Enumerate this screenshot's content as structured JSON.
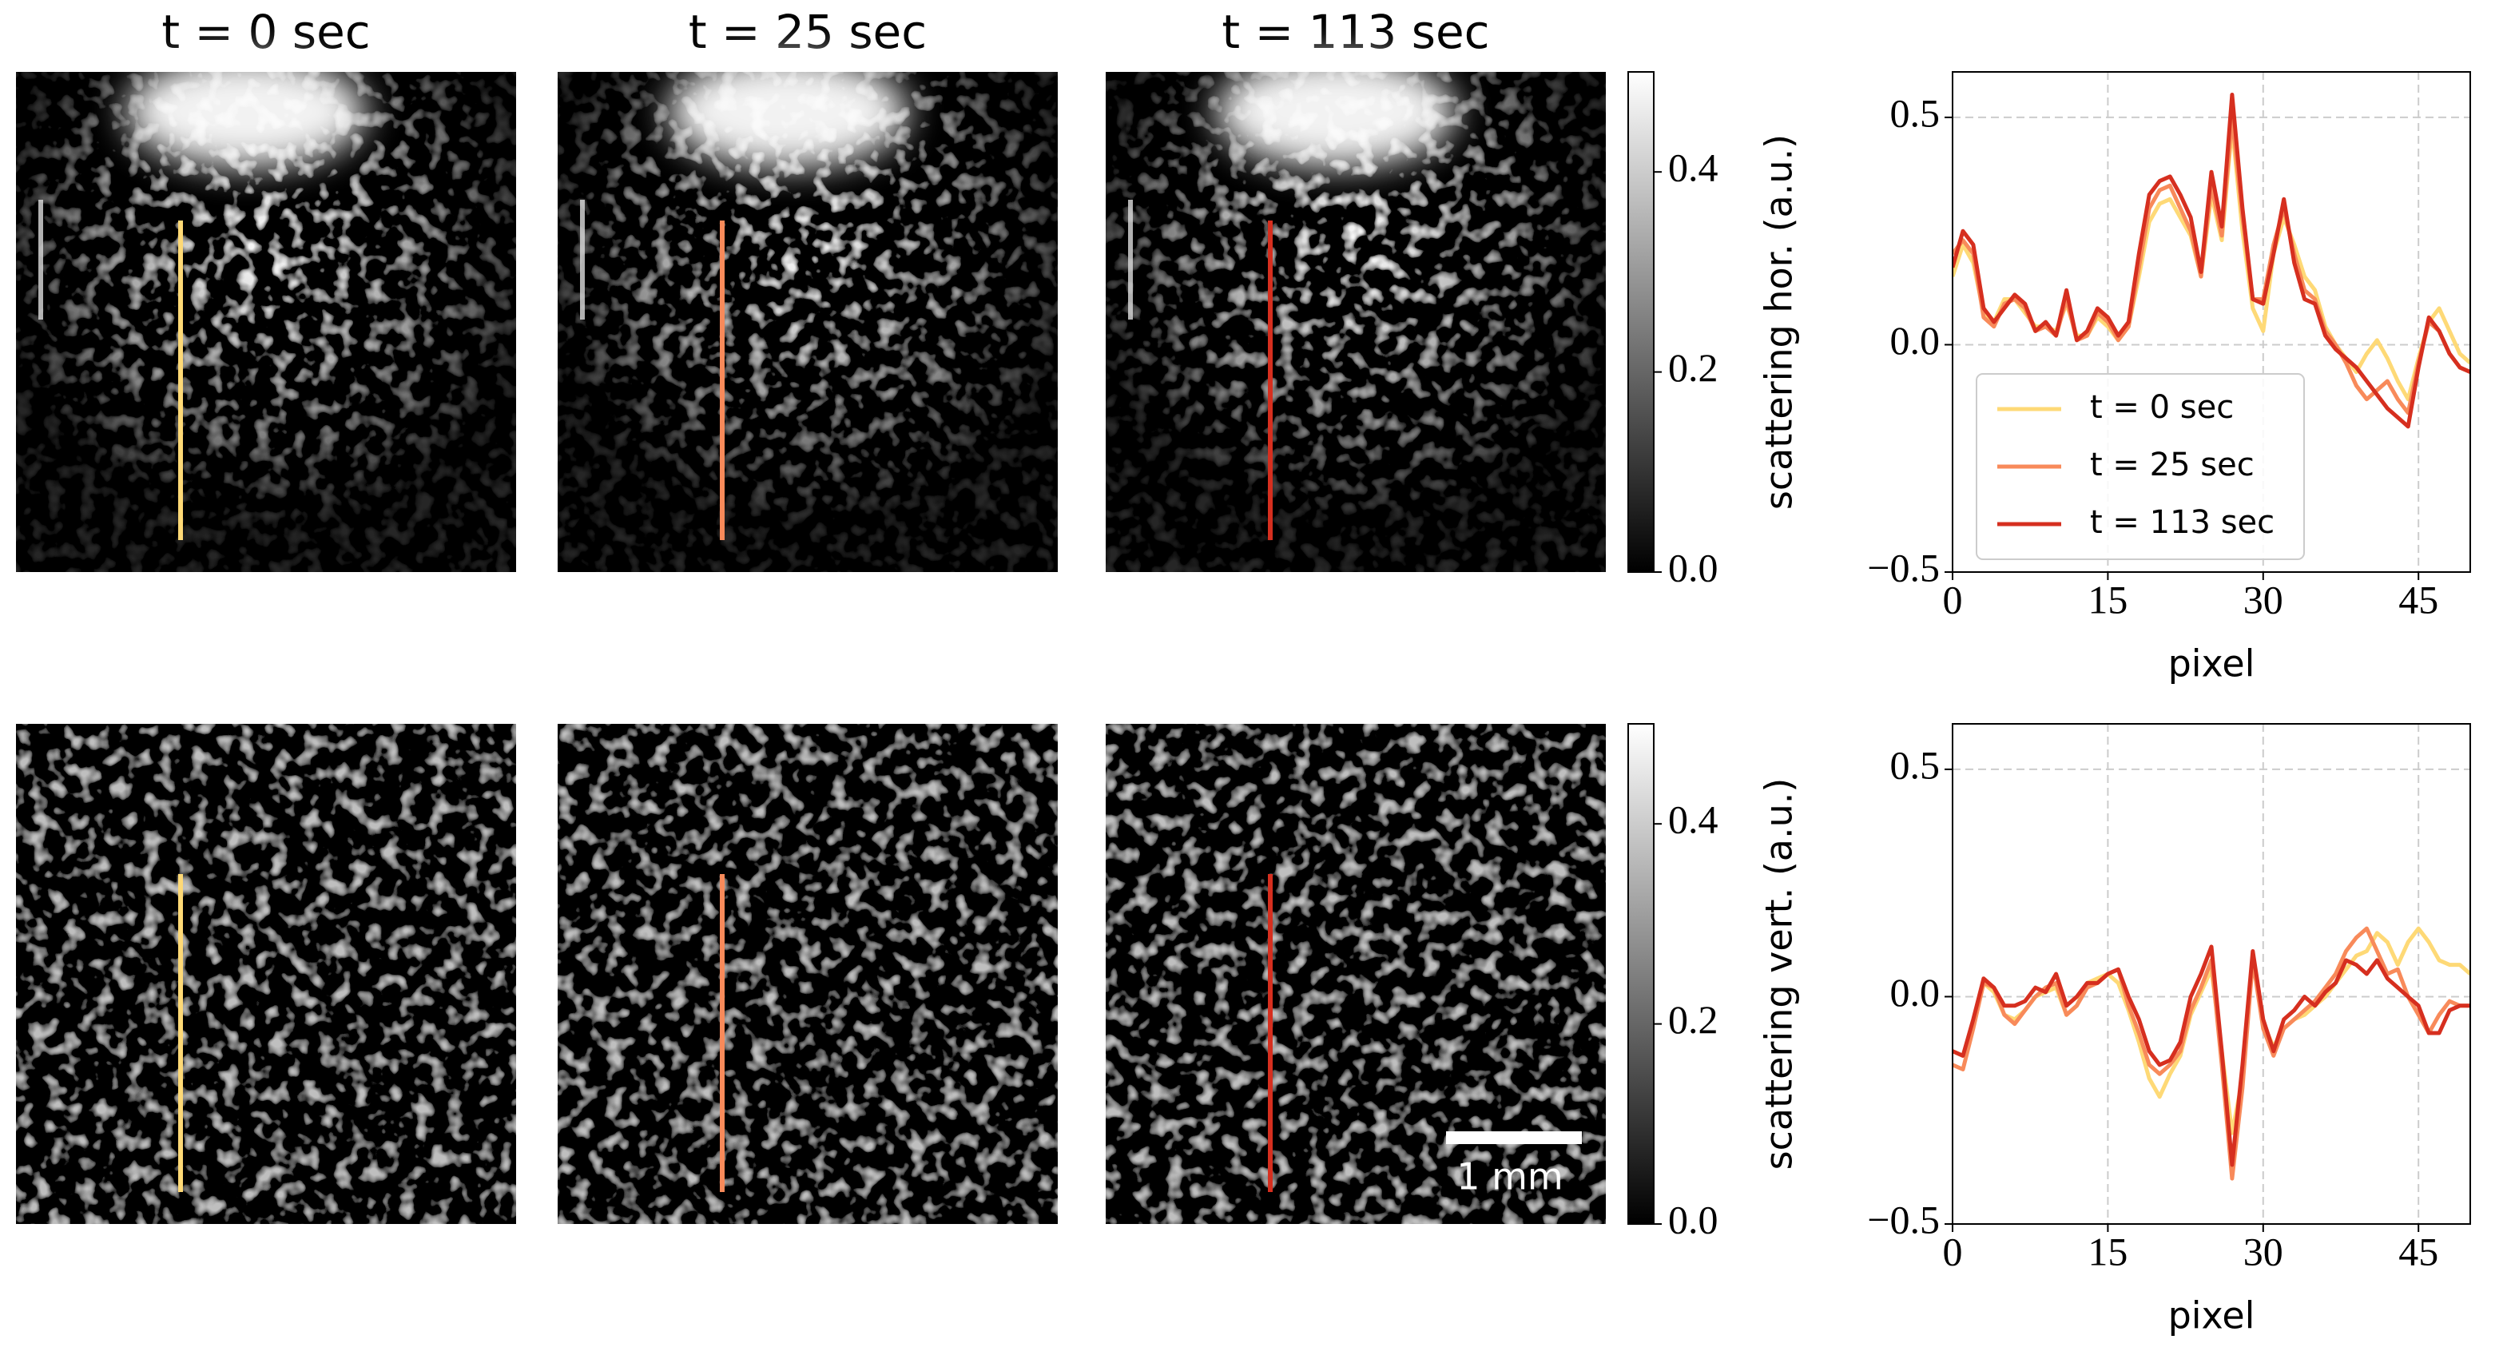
{
  "panel_titles": [
    "t = 0 sec",
    "t = 25 sec",
    "t = 113 sec"
  ],
  "scale_bar": "1 mm",
  "chart_data": [
    {
      "type": "colorbar",
      "ylabel": "scattering hor. (a.u.)",
      "ylim": [
        0,
        0.5
      ],
      "yticks": [
        {
          "value": 0,
          "label": "0.0"
        },
        {
          "value": 0.2,
          "label": "0.2"
        },
        {
          "value": 0.4,
          "label": "0.4"
        }
      ]
    },
    {
      "type": "line",
      "xlabel": "pixel",
      "x": [
        0,
        1,
        2,
        3,
        4,
        5,
        6,
        7,
        8,
        9,
        10,
        11,
        12,
        13,
        14,
        15,
        16,
        17,
        18,
        19,
        20,
        21,
        22,
        23,
        24,
        25,
        26,
        27,
        28,
        29,
        30,
        31,
        32,
        33,
        34,
        35,
        36,
        37,
        38,
        39,
        40,
        41,
        42,
        43,
        44,
        45,
        46,
        47,
        48,
        49,
        50
      ],
      "xlim": [
        0,
        50
      ],
      "xticks": [
        0,
        15,
        30,
        45
      ],
      "ylim": [
        -0.5,
        0.6
      ],
      "yticks": [
        {
          "value": -0.5,
          "label": "−0.5"
        },
        {
          "value": 0,
          "label": "0.0"
        },
        {
          "value": 0.5,
          "label": "0.5"
        }
      ],
      "grid": true,
      "legend": "lower left",
      "series": [
        {
          "name": "t = 0 sec",
          "color": "#fed976",
          "values": [
            0.15,
            0.22,
            0.18,
            0.07,
            0.05,
            0.1,
            0.1,
            0.07,
            0.04,
            0.04,
            0.03,
            0.09,
            0.02,
            0.02,
            0.06,
            0.04,
            0.01,
            0.04,
            0.15,
            0.27,
            0.31,
            0.32,
            0.28,
            0.24,
            0.15,
            0.33,
            0.23,
            0.48,
            0.25,
            0.08,
            0.03,
            0.2,
            0.28,
            0.22,
            0.15,
            0.12,
            0.04,
            0,
            -0.03,
            -0.06,
            -0.02,
            0.01,
            -0.03,
            -0.08,
            -0.12,
            -0.03,
            0.05,
            0.08,
            0.03,
            -0.02,
            -0.04
          ]
        },
        {
          "name": "t = 25 sec",
          "color": "#f88a5a",
          "values": [
            0.2,
            0.23,
            0.2,
            0.06,
            0.04,
            0.09,
            0.1,
            0.08,
            0.03,
            0.04,
            0.02,
            0.1,
            0.01,
            0.02,
            0.07,
            0.05,
            0.01,
            0.04,
            0.17,
            0.3,
            0.34,
            0.35,
            0.3,
            0.25,
            0.15,
            0.35,
            0.24,
            0.5,
            0.28,
            0.1,
            0.1,
            0.22,
            0.3,
            0.2,
            0.12,
            0.1,
            0.03,
            0,
            -0.04,
            -0.09,
            -0.12,
            -0.1,
            -0.08,
            -0.12,
            -0.15,
            -0.04,
            0.05,
            0.03,
            -0.02,
            -0.05,
            -0.06
          ]
        },
        {
          "name": "t = 113 sec",
          "color": "#d62f1f",
          "values": [
            0.17,
            0.25,
            0.22,
            0.08,
            0.05,
            0.08,
            0.11,
            0.09,
            0.03,
            0.05,
            0.02,
            0.12,
            0.01,
            0.03,
            0.08,
            0.06,
            0.02,
            0.05,
            0.2,
            0.33,
            0.36,
            0.37,
            0.33,
            0.28,
            0.16,
            0.38,
            0.26,
            0.55,
            0.3,
            0.1,
            0.09,
            0.2,
            0.32,
            0.18,
            0.1,
            0.09,
            0.02,
            -0.01,
            -0.03,
            -0.05,
            -0.08,
            -0.11,
            -0.14,
            -0.16,
            -0.18,
            -0.05,
            0.06,
            0.03,
            -0.02,
            -0.05,
            -0.06
          ]
        }
      ]
    },
    {
      "type": "colorbar",
      "ylabel": "scattering vert. (a.u.)",
      "ylim": [
        0,
        0.5
      ],
      "yticks": [
        {
          "value": 0,
          "label": "0.0"
        },
        {
          "value": 0.2,
          "label": "0.2"
        },
        {
          "value": 0.4,
          "label": "0.4"
        }
      ]
    },
    {
      "type": "line",
      "xlabel": "pixel",
      "x": [
        0,
        1,
        2,
        3,
        4,
        5,
        6,
        7,
        8,
        9,
        10,
        11,
        12,
        13,
        14,
        15,
        16,
        17,
        18,
        19,
        20,
        21,
        22,
        23,
        24,
        25,
        26,
        27,
        28,
        29,
        30,
        31,
        32,
        33,
        34,
        35,
        36,
        37,
        38,
        39,
        40,
        41,
        42,
        43,
        44,
        45,
        46,
        47,
        48,
        49,
        50
      ],
      "xlim": [
        0,
        50
      ],
      "xticks": [
        0,
        15,
        30,
        45
      ],
      "ylim": [
        -0.5,
        0.6
      ],
      "yticks": [
        {
          "value": -0.5,
          "label": "−0.5"
        },
        {
          "value": 0,
          "label": "0.0"
        },
        {
          "value": 0.5,
          "label": "0.5"
        }
      ],
      "grid": true,
      "series": [
        {
          "color": "#fed976",
          "values": [
            -0.12,
            -0.13,
            -0.06,
            0.03,
            0.01,
            -0.04,
            -0.05,
            -0.03,
            0,
            0.01,
            0.02,
            -0.04,
            -0.02,
            0.03,
            0.04,
            0.05,
            0.03,
            -0.03,
            -0.1,
            -0.18,
            -0.22,
            -0.17,
            -0.13,
            -0.04,
            0.01,
            0.06,
            -0.12,
            -0.3,
            -0.18,
            0.09,
            -0.06,
            -0.11,
            -0.07,
            -0.05,
            -0.04,
            -0.02,
            0,
            0.03,
            0.06,
            0.09,
            0.1,
            0.14,
            0.12,
            0.07,
            0.12,
            0.15,
            0.12,
            0.08,
            0.07,
            0.07,
            0.05
          ]
        },
        {
          "color": "#f88a5a",
          "values": [
            -0.15,
            -0.16,
            -0.07,
            0.03,
            0.02,
            -0.04,
            -0.06,
            -0.03,
            0,
            0.02,
            0.03,
            -0.04,
            -0.02,
            0.02,
            0.03,
            0.05,
            0.06,
            -0.02,
            -0.08,
            -0.15,
            -0.17,
            -0.15,
            -0.12,
            -0.03,
            0.02,
            0.08,
            -0.15,
            -0.4,
            -0.2,
            0.08,
            -0.07,
            -0.13,
            -0.07,
            -0.05,
            -0.03,
            -0.01,
            0.02,
            0.05,
            0.1,
            0.13,
            0.15,
            0.1,
            0.05,
            0.06,
            0,
            -0.04,
            -0.08,
            -0.04,
            -0.01,
            -0.02,
            -0.02
          ]
        },
        {
          "color": "#d62f1f",
          "values": [
            -0.12,
            -0.13,
            -0.05,
            0.04,
            0.02,
            -0.02,
            -0.02,
            -0.01,
            0.02,
            0.01,
            0.05,
            -0.02,
            0,
            0.03,
            0.03,
            0.05,
            0.06,
            0,
            -0.05,
            -0.12,
            -0.15,
            -0.14,
            -0.1,
            0,
            0.05,
            0.11,
            -0.12,
            -0.37,
            -0.15,
            0.1,
            -0.05,
            -0.12,
            -0.05,
            -0.03,
            0,
            -0.02,
            0.01,
            0.03,
            0.08,
            0.07,
            0.05,
            0.08,
            0.04,
            0.02,
            0,
            -0.02,
            -0.08,
            -0.08,
            -0.03,
            -0.02,
            -0.02
          ]
        }
      ]
    }
  ]
}
